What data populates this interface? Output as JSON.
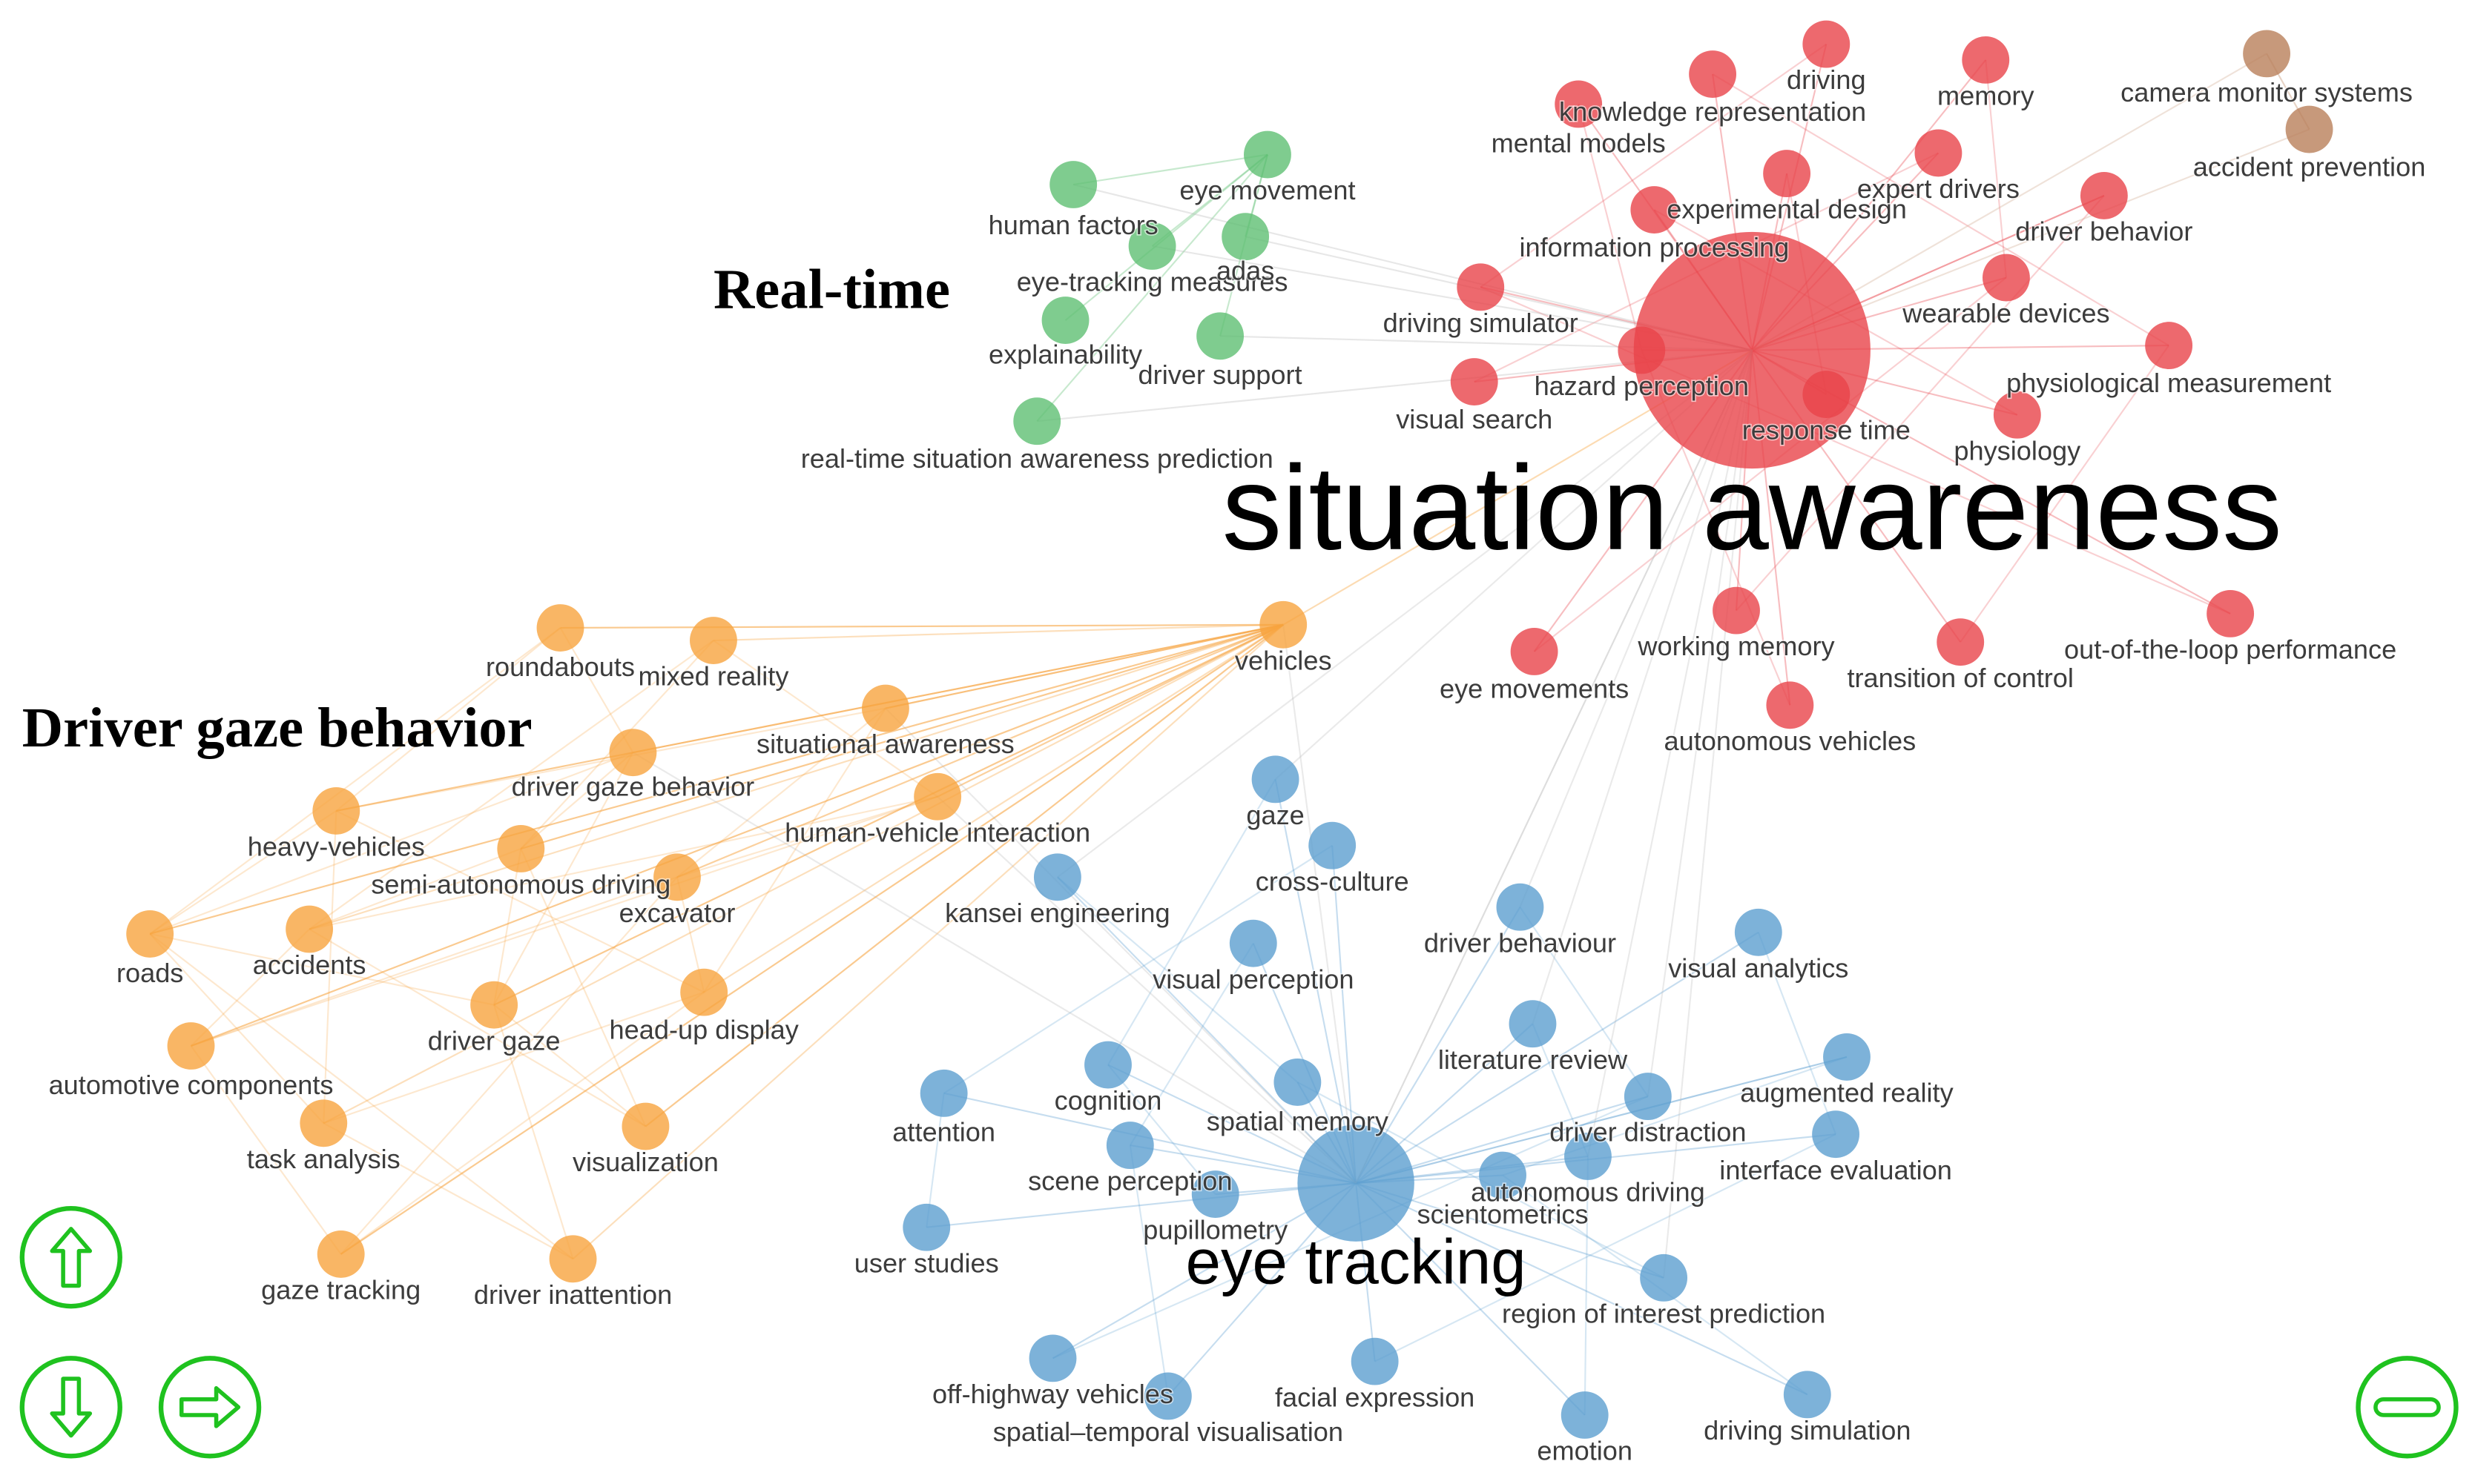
{
  "annotations": [
    "Real-time",
    "Driver gaze behavior"
  ],
  "clusters": [
    {
      "color": "#e8434a",
      "nodes": [
        {
          "label": "situation awareness"
        },
        {
          "label": "driving"
        },
        {
          "label": "memory"
        },
        {
          "label": "knowledge representation"
        },
        {
          "label": "mental models"
        },
        {
          "label": "expert drivers"
        },
        {
          "label": "experimental design"
        },
        {
          "label": "information processing"
        },
        {
          "label": "driver behavior"
        },
        {
          "label": "driving simulator"
        },
        {
          "label": "wearable devices"
        },
        {
          "label": "physiological measurement"
        },
        {
          "label": "hazard perception"
        },
        {
          "label": "visual search"
        },
        {
          "label": "response time"
        },
        {
          "label": "physiology"
        },
        {
          "label": "working memory"
        },
        {
          "label": "out-of-the-loop performance"
        },
        {
          "label": "eye movements"
        },
        {
          "label": "transition of control"
        },
        {
          "label": "autonomous vehicles"
        }
      ]
    },
    {
      "color": "#b9805a",
      "nodes": [
        {
          "label": "camera monitor systems"
        },
        {
          "label": "accident prevention"
        }
      ]
    },
    {
      "color": "#5fbf73",
      "nodes": [
        {
          "label": "eye movement"
        },
        {
          "label": "human factors"
        },
        {
          "label": "eye-tracking measures"
        },
        {
          "label": "adas"
        },
        {
          "label": "explainability"
        },
        {
          "label": "driver support"
        },
        {
          "label": "real-time situation awareness prediction"
        }
      ]
    },
    {
      "color": "#f7a43e",
      "nodes": [
        {
          "label": "vehicles"
        },
        {
          "label": "roundabouts"
        },
        {
          "label": "mixed reality"
        },
        {
          "label": "situational awareness"
        },
        {
          "label": "driver gaze behavior"
        },
        {
          "label": "human-vehicle interaction"
        },
        {
          "label": "heavy-vehicles"
        },
        {
          "label": "semi-autonomous driving"
        },
        {
          "label": "excavator"
        },
        {
          "label": "roads"
        },
        {
          "label": "accidents"
        },
        {
          "label": "head-up display"
        },
        {
          "label": "driver gaze"
        },
        {
          "label": "automotive components"
        },
        {
          "label": "task analysis"
        },
        {
          "label": "visualization"
        },
        {
          "label": "gaze tracking"
        },
        {
          "label": "driver inattention"
        }
      ]
    },
    {
      "color": "#5c9fd0",
      "nodes": [
        {
          "label": "eye tracking"
        },
        {
          "label": "gaze"
        },
        {
          "label": "cross-culture"
        },
        {
          "label": "kansei engineering"
        },
        {
          "label": "driver behaviour"
        },
        {
          "label": "visual analytics"
        },
        {
          "label": "visual perception"
        },
        {
          "label": "literature review"
        },
        {
          "label": "augmented reality"
        },
        {
          "label": "cognition"
        },
        {
          "label": "attention"
        },
        {
          "label": "spatial memory"
        },
        {
          "label": "driver distraction"
        },
        {
          "label": "interface evaluation"
        },
        {
          "label": "scene perception"
        },
        {
          "label": "autonomous driving"
        },
        {
          "label": "scientometrics"
        },
        {
          "label": "pupillometry"
        },
        {
          "label": "user studies"
        },
        {
          "label": "region of interest prediction"
        },
        {
          "label": "off-highway vehicles"
        },
        {
          "label": "facial expression"
        },
        {
          "label": "spatial–temporal visualisation"
        },
        {
          "label": "emotion"
        },
        {
          "label": "driving simulation"
        }
      ]
    }
  ]
}
